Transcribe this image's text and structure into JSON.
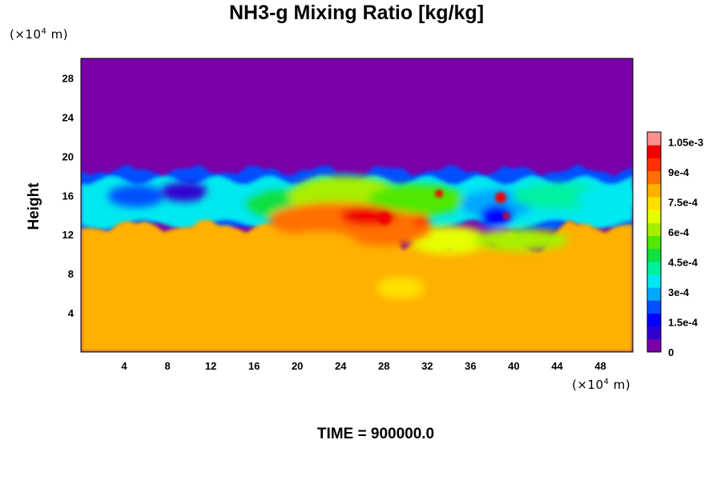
{
  "chart_data": {
    "type": "heatmap",
    "title": "NH3-g Mixing Ratio [kg/kg]",
    "ylabel": "Height",
    "xlabel": "",
    "y_unit": "(×10",
    "y_unit_exp": "4",
    "y_unit_tail": " m)",
    "x_unit": "(×10",
    "x_unit_exp": "4",
    "x_unit_tail": " m)",
    "xlim": [
      0,
      51
    ],
    "ylim": [
      0,
      30
    ],
    "x_ticks": [
      "4",
      "8",
      "12",
      "16",
      "20",
      "24",
      "28",
      "32",
      "36",
      "40",
      "44",
      "48"
    ],
    "x_tick_values": [
      4,
      8,
      12,
      16,
      20,
      24,
      28,
      32,
      36,
      40,
      44,
      48
    ],
    "y_ticks": [
      "4",
      "8",
      "12",
      "16",
      "20",
      "24",
      "28"
    ],
    "y_tick_values": [
      4,
      8,
      12,
      16,
      20,
      24,
      28
    ],
    "colorbar": {
      "min": 0,
      "max": 0.0011,
      "labels": [
        "0",
        "1.5e-4",
        "3e-4",
        "4.5e-4",
        "6e-4",
        "7.5e-4",
        "9e-4",
        "1.05e-3"
      ],
      "label_values": [
        0,
        0.00015,
        0.0003,
        0.00045,
        0.0006,
        0.00075,
        0.0009,
        0.00105
      ],
      "colors": [
        "#7a00a8",
        "#3000d0",
        "#0000ff",
        "#0050ff",
        "#00a8ff",
        "#00e8f0",
        "#00f0a0",
        "#10e040",
        "#50e800",
        "#a8ee00",
        "#e6ff00",
        "#ffe000",
        "#ffb000",
        "#ff7000",
        "#ff3000",
        "#f00000",
        "#ff9090"
      ]
    },
    "fields": {
      "upper_region_value": 0,
      "lower_region_value": 0.0008,
      "transition_band_height": [
        11,
        18.5
      ],
      "max_value_approx": 0.00105
    }
  },
  "time_label": "TIME = 900000.0",
  "colors": {
    "background": "#ffffff",
    "upper_purple": "#7a00a8",
    "lower_yellow": "#e6ff00"
  }
}
